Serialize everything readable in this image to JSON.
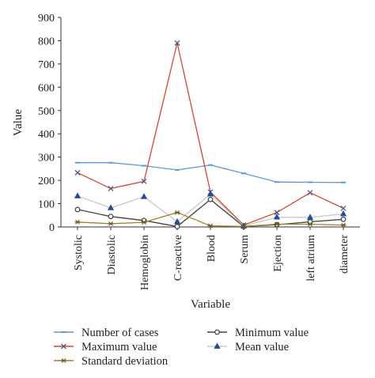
{
  "chart_data": {
    "type": "line",
    "xlabel": "Variable",
    "ylabel": "Value",
    "ylim": [
      0,
      900
    ],
    "yticks": [
      0,
      100,
      200,
      300,
      400,
      500,
      600,
      700,
      800,
      900
    ],
    "grid": false,
    "legend_position": "bottom",
    "categories": [
      "Systolic",
      "Diastolic",
      "Hemoglobin",
      "C-reactive",
      "Blood",
      "Serum",
      "Ejection",
      "left atrium",
      "diameter"
    ],
    "series": [
      {
        "name": "Number of cases",
        "color": "#5b9bd5",
        "marker": "dash",
        "values": [
          276,
          276,
          263,
          245,
          266,
          230,
          193,
          192,
          191
        ]
      },
      {
        "name": "Minimum value",
        "color": "#404040",
        "marker": "circle",
        "values": [
          75,
          45,
          28,
          2,
          118,
          2,
          10,
          22,
          33
        ]
      },
      {
        "name": "Maximum value",
        "color": "#d9472b",
        "marker": "x",
        "values": [
          233,
          165,
          196,
          790,
          150,
          8,
          62,
          147,
          80
        ]
      },
      {
        "name": "Mean value",
        "color": "#c8c8c8",
        "marker": "triangle",
        "values": [
          133,
          82,
          130,
          22,
          141,
          4,
          42,
          41,
          56
        ]
      },
      {
        "name": "Standard deviation",
        "color": "#a0822a",
        "marker": "asterisk",
        "values": [
          21,
          14,
          20,
          62,
          5,
          2,
          12,
          12,
          8
        ]
      }
    ]
  }
}
